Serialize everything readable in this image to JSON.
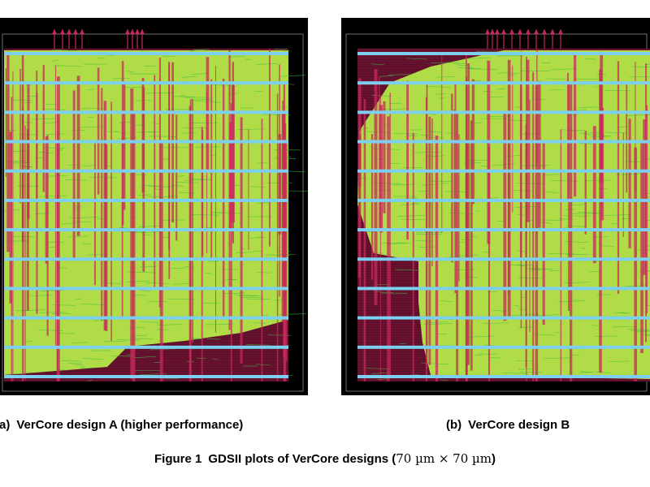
{
  "figure": {
    "number_label": "Figure 1",
    "caption_text": "GDSII plots of VerCore designs (",
    "caption_dims": "70 µm × 70 µm",
    "caption_close": ")"
  },
  "panels": [
    {
      "tag": "(a)",
      "caption": "VerCore design A (higher performance)"
    },
    {
      "tag": "(b)",
      "caption": "VerCore design B"
    }
  ],
  "colors": {
    "background": "#000000",
    "metal_red": "#c8285a",
    "cells_green": "#b6ee4a",
    "power_rail_cyan": "#7ccfee",
    "routing_green": "#3fbf3f",
    "outline_gray": "#8a8a8a"
  }
}
